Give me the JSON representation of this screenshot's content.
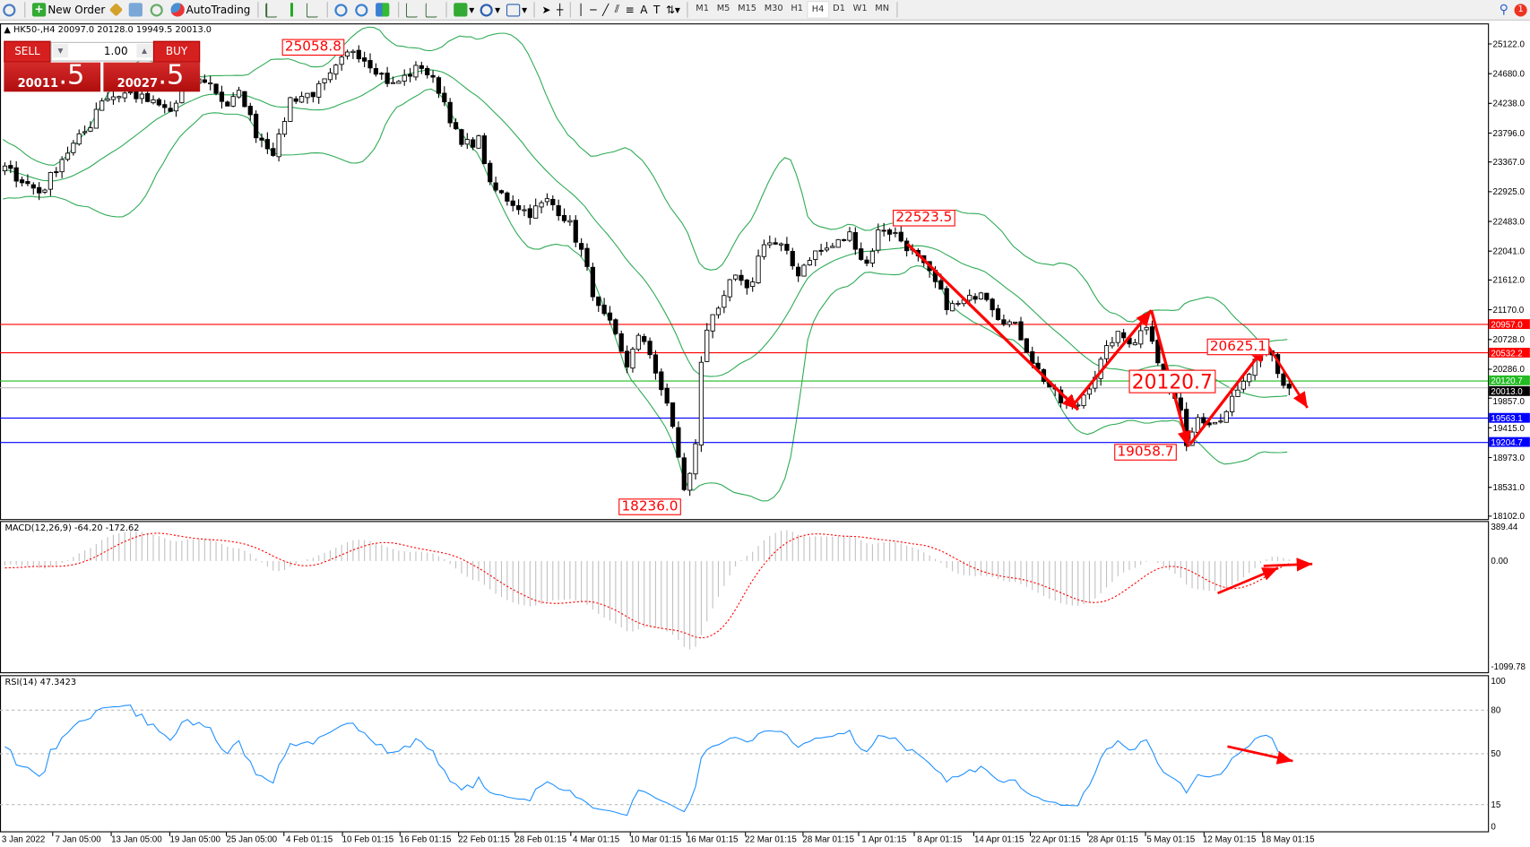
{
  "toolbar": {
    "new_order": "New Order",
    "autotrading": "AutoTrading",
    "timeframes": [
      "M1",
      "M5",
      "M15",
      "M30",
      "H1",
      "H4",
      "D1",
      "W1",
      "MN"
    ],
    "active_timeframe": "H4",
    "notification_count": "1"
  },
  "chart": {
    "header": "HK50-,H4  20097.0 20128.0 19949.5 20013.0",
    "price_axis": [
      "25122.0",
      "24680.0",
      "24238.0",
      "23796.0",
      "23367.0",
      "22925.0",
      "22483.0",
      "22041.0",
      "21612.0",
      "21170.0",
      "20728.0",
      "20286.0",
      "19857.0",
      "19415.0",
      "18973.0",
      "18531.0",
      "18102.0"
    ],
    "levels": [
      {
        "value": "20957.0",
        "color": "#ff0000"
      },
      {
        "value": "20532.2",
        "color": "#ff0000"
      },
      {
        "value": "20120.7",
        "color": "#22bb22"
      },
      {
        "value": "20013.0",
        "color": "#000000"
      },
      {
        "value": "19563.1",
        "color": "#0000ff"
      },
      {
        "value": "19204.7",
        "color": "#0000ff"
      }
    ],
    "annotations": [
      "25058.8",
      "22523.5",
      "18236.0",
      "20120.7",
      "20625.1",
      "19058.7"
    ],
    "time_axis": [
      "3 Jan 2022",
      "7 Jan 05:00",
      "13 Jan 05:00",
      "19 Jan 05:00",
      "25 Jan 05:00",
      "4 Feb 01:15",
      "10 Feb 01:15",
      "16 Feb 01:15",
      "22 Feb 01:15",
      "28 Feb 01:15",
      "4 Mar 01:15",
      "10 Mar 01:15",
      "16 Mar 01:15",
      "22 Mar 01:15",
      "28 Mar 01:15",
      "1 Apr 01:15",
      "8 Apr 01:15",
      "14 Apr 01:15",
      "22 Apr 01:15",
      "28 Apr 01:15",
      "5 May 01:15",
      "12 May 01:15",
      "18 May 01:15"
    ],
    "colors": {
      "bands": "#2eaa55",
      "annotation": "#ff0000",
      "macd_signal": "#ff0000",
      "macd_hist": "#c0c0c0",
      "rsi": "#1e90ff"
    }
  },
  "trade_panel": {
    "sell": "SELL",
    "buy": "BUY",
    "lot": "1.00",
    "sell_big": "20011",
    "sell_small": ".5",
    "buy_big": "20027",
    "buy_small": ".5"
  },
  "macd": {
    "label": "MACD(12,26,9) -64.20 -172.62",
    "axis": [
      "389.44",
      "0.00",
      "-1099.78"
    ]
  },
  "rsi": {
    "label": "RSI(14) 47.3423",
    "axis": [
      "100",
      "80",
      "50",
      "15",
      "0"
    ]
  }
}
